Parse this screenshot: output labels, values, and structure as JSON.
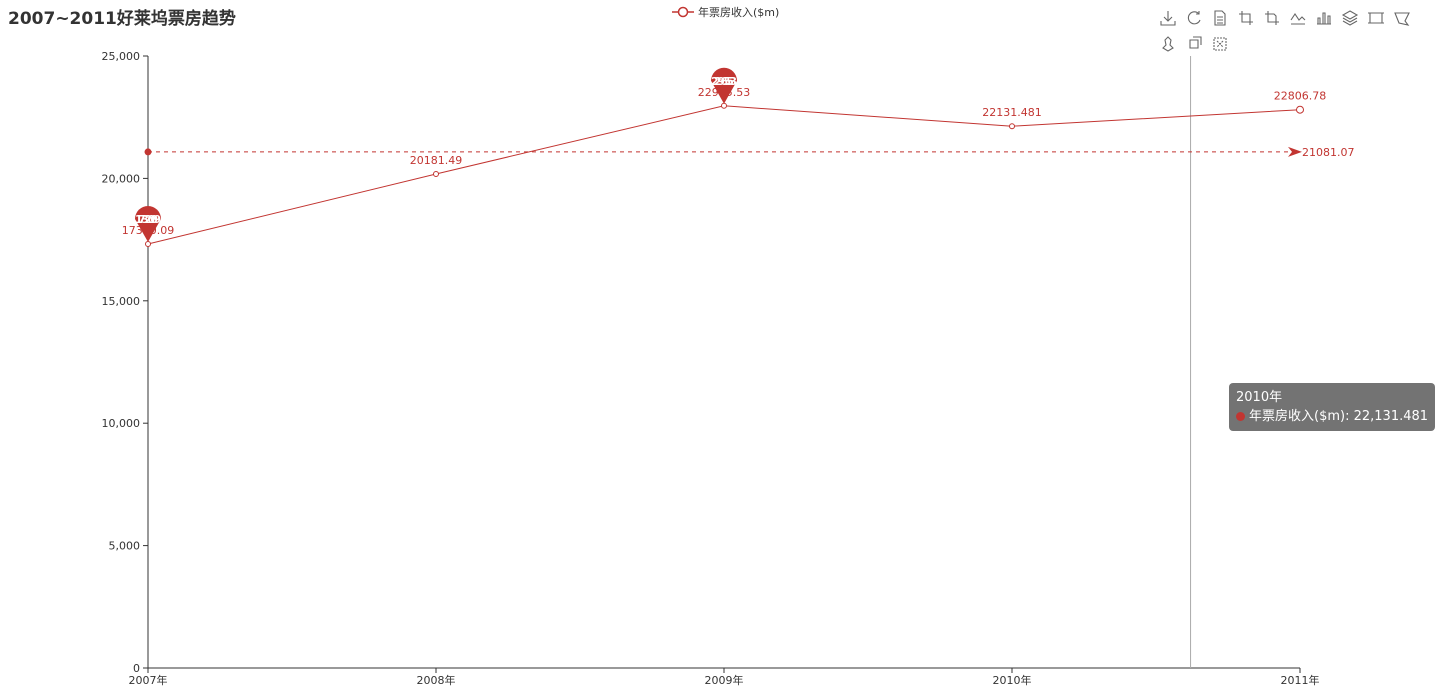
{
  "title": "2007~2011好莱坞票房趋势",
  "legend": {
    "label": "年票房收入($m)"
  },
  "colors": {
    "series": "#c23531",
    "axis": "#333333",
    "tooltip_bg": "#505050"
  },
  "toolbox": {
    "icons": [
      "download-icon",
      "refresh-icon",
      "data-view-icon",
      "crop-icon",
      "crop-alt-icon",
      "line-chart-icon",
      "bar-chart-icon",
      "stack-icon",
      "rect-select-icon",
      "polygon-select-icon",
      "lasso-select-icon",
      "brush-keep-icon",
      "brush-clear-icon"
    ]
  },
  "chart_data": {
    "type": "line",
    "title": "2007~2011好莱坞票房趋势",
    "categories": [
      "2007年",
      "2008年",
      "2009年",
      "2010年",
      "2011年"
    ],
    "series": [
      {
        "name": "年票房收入($m)",
        "values": [
          17320.09,
          20181.49,
          22965.53,
          22131.481,
          22806.78
        ]
      }
    ],
    "point_labels": [
      "17320.09",
      "20181.49",
      "22965.53",
      "22131.481",
      "22806.78"
    ],
    "ylim": [
      0,
      25000
    ],
    "yticks": [
      0,
      5000,
      10000,
      15000,
      20000,
      25000
    ],
    "ytick_labels": [
      "0",
      "5,000",
      "10,000",
      "15,000",
      "20,000",
      "25,000"
    ],
    "mark_points": [
      {
        "type": "min",
        "category": "2007年",
        "value": 17320.09,
        "label": "17320.09"
      },
      {
        "type": "max",
        "category": "2009年",
        "value": 22965.53,
        "label": "22965.53"
      }
    ],
    "mark_line": {
      "type": "average",
      "value": 21081.07,
      "label": "21081.07"
    },
    "axis_pointer_category": "2010年",
    "grid": false
  },
  "tooltip": {
    "title": "2010年",
    "series": "年票房收入($m)",
    "value": "22,131.481"
  }
}
